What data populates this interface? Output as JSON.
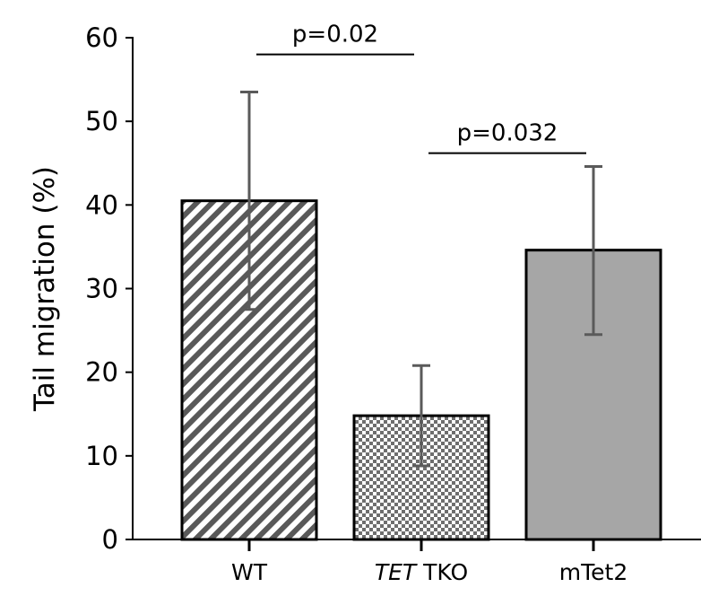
{
  "chart_data": {
    "type": "bar",
    "title": "",
    "xlabel": "",
    "ylabel": "Tail migration (%)",
    "ylim": [
      0,
      60
    ],
    "yticks": [
      0,
      10,
      20,
      30,
      40,
      50,
      60
    ],
    "grid": false,
    "legend": "none",
    "categories": [
      {
        "label": "",
        "italic_part": "",
        "text": "WT"
      },
      {
        "label": "",
        "italic_part": "TET",
        "text": "TKO"
      },
      {
        "label": "",
        "italic_part": "",
        "text": "mTet2"
      }
    ],
    "values": [
      40.5,
      14.8,
      34.6
    ],
    "error_low": [
      27.5,
      8.8,
      24.5
    ],
    "error_high": [
      53.5,
      20.8,
      44.6
    ],
    "patterns": [
      "diagonal-stripes",
      "checker",
      "solid-gray"
    ],
    "colors": {
      "stripe": "#595959",
      "checker": "#6e6e6e",
      "solid": "#a6a6a6",
      "error_bar": "#5a5a5a",
      "outline": "#000000"
    },
    "annotations": [
      {
        "text": "p=0.02",
        "from": 0,
        "to": 1,
        "y": 58.0
      },
      {
        "text": "p=0.032",
        "from": 1,
        "to": 2,
        "y": 46.2
      }
    ]
  }
}
